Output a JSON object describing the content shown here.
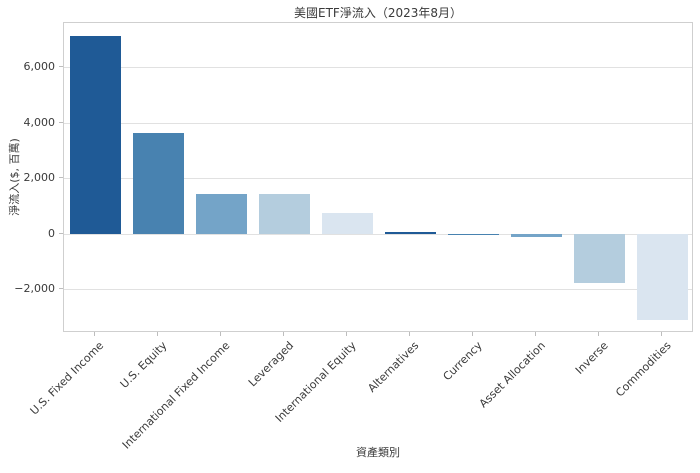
{
  "title": "美國ETF淨流入（2023年8月）",
  "chart_data": {
    "type": "bar",
    "title": "美國ETF淨流入（2023年8月）",
    "xlabel": "資產類別",
    "ylabel": "淨流入($, 百萬)",
    "categories": [
      "U.S. Fixed Income",
      "U.S. Equity",
      "International Fixed Income",
      "Leveraged",
      "International Equity",
      "Alternatives",
      "Currency",
      "Asset Allocation",
      "Inverse",
      "Commodities"
    ],
    "values": [
      7150,
      3640,
      1470,
      1440,
      780,
      100,
      15,
      -110,
      -1750,
      -3080
    ],
    "bar_colors": [
      "#1f5a96",
      "#4882b0",
      "#74a4c8",
      "#b4cdde",
      "#dae5f0",
      "#1f5a96",
      "#4882b0",
      "#74a4c8",
      "#b4cdde",
      "#dae5f0"
    ],
    "ylim": [
      -3550,
      7610
    ],
    "yticks": [
      -2000,
      0,
      2000,
      4000,
      6000
    ],
    "ytick_labels": [
      "−2,000",
      "0",
      "2,000",
      "4,000",
      "6,000"
    ],
    "grid": "horizontal",
    "legend": null,
    "bar_width_fraction": 0.8
  },
  "style_colors": {
    "grid": "#e1e1e1",
    "spine": "#cfcfcf",
    "tick": "#bdbdbd",
    "text": "#3a3a3a"
  }
}
